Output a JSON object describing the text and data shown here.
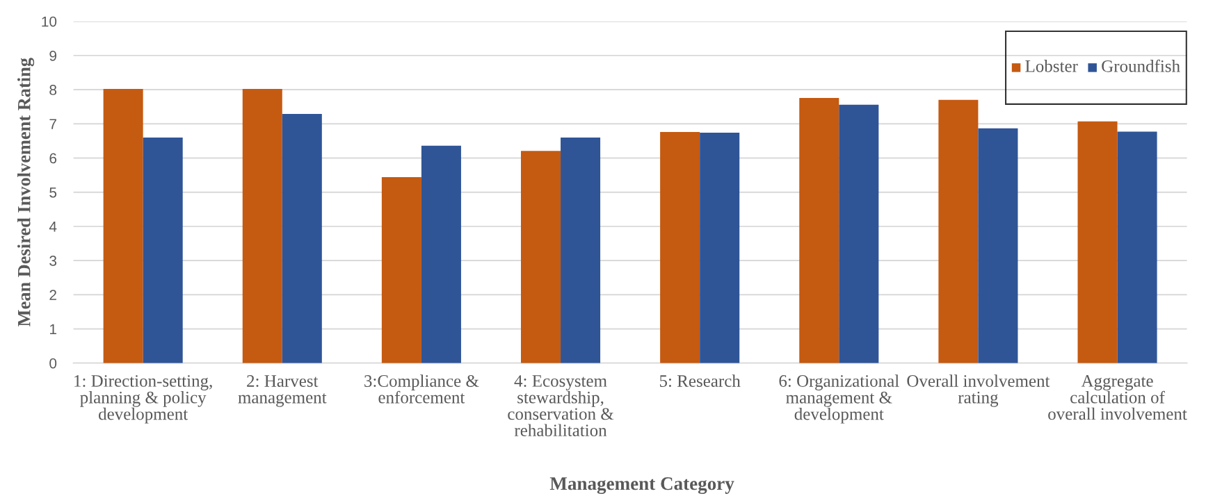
{
  "chart_data": {
    "type": "bar",
    "xlabel": "Management Category",
    "ylabel": "Mean Desired Involvement Rating",
    "categories": [
      "1: Direction-setting,\nplanning & policy\ndevelopment",
      "2: Harvest\nmanagement",
      "3:Compliance &\nenforcement",
      "4: Ecosystem\nstewardship,\nconservation &\nrehabilitation",
      "5: Research",
      "6: Organizational\nmanagement &\ndevelopment",
      "Overall involvement\nrating",
      "Aggregate\ncalculation of\noverall involvement"
    ],
    "series": [
      {
        "name": "Lobster",
        "color": "#c55a11",
        "values": [
          8.02,
          8.02,
          5.44,
          6.21,
          6.76,
          7.76,
          7.7,
          7.07
        ]
      },
      {
        "name": "Groundfish",
        "color": "#2f5597",
        "values": [
          6.6,
          7.29,
          6.36,
          6.6,
          6.74,
          7.56,
          6.87,
          6.77
        ]
      }
    ],
    "ylim": [
      0,
      10
    ],
    "yticks": [
      0,
      1,
      2,
      3,
      4,
      5,
      6,
      7,
      8,
      9,
      10
    ],
    "grid": "y",
    "legend": "top right"
  }
}
